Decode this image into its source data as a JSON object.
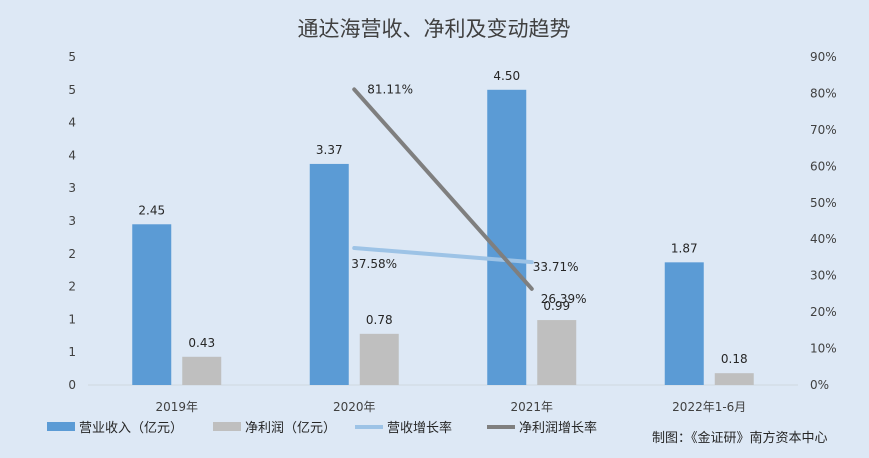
{
  "chart_data": {
    "type": "bar",
    "title": "通达海营收、净利及变动趋势",
    "categories": [
      "2019年",
      "2020年",
      "2021年",
      "2022年1-6月"
    ],
    "series": [
      {
        "name": "营业收入（亿元）",
        "kind": "bar",
        "axis": "left",
        "color": "#5b9bd5",
        "values": [
          2.45,
          3.37,
          4.5,
          1.87
        ],
        "labels": [
          "2.45",
          "3.37",
          "4.50",
          "1.87"
        ]
      },
      {
        "name": "净利润（亿元）",
        "kind": "bar",
        "axis": "left",
        "color": "#bfbfbf",
        "values": [
          0.43,
          0.78,
          0.99,
          0.18
        ],
        "labels": [
          "0.43",
          "0.78",
          "0.99",
          "0.18"
        ]
      },
      {
        "name": "营收增长率",
        "kind": "line",
        "axis": "right",
        "color": "#9dc3e6",
        "values": [
          null,
          37.58,
          33.71,
          null
        ],
        "labels": [
          "",
          "37.58%",
          "33.71%",
          ""
        ]
      },
      {
        "name": "净利润增长率",
        "kind": "line",
        "axis": "right",
        "color": "#7f7f7f",
        "values": [
          null,
          81.11,
          26.39,
          null
        ],
        "labels": [
          "",
          "81.11%",
          "26.39%",
          ""
        ]
      }
    ],
    "left_axis": {
      "ylim": [
        0,
        5
      ],
      "tick_labels": [
        "0",
        "1",
        "1",
        "2",
        "2",
        "3",
        "3",
        "4",
        "4",
        "5",
        "5"
      ]
    },
    "right_axis": {
      "ylim": [
        0,
        90
      ],
      "tick_labels": [
        "0%",
        "10%",
        "20%",
        "30%",
        "40%",
        "50%",
        "60%",
        "70%",
        "80%",
        "90%"
      ]
    },
    "grid": false,
    "legend_position": "bottom-left"
  },
  "credit": "制图：《金证研》南方资本中心"
}
